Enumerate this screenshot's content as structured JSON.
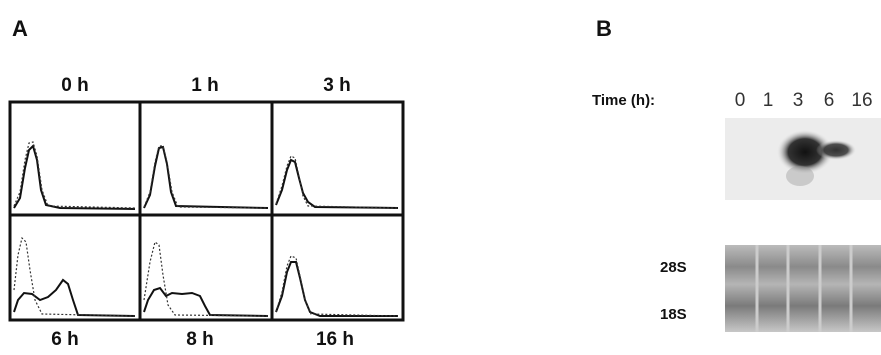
{
  "panel_a": {
    "label": "A",
    "top_labels": [
      "0 h",
      "1 h",
      "3 h"
    ],
    "bottom_labels": [
      "6 h",
      "8 h",
      "16 h"
    ]
  },
  "panel_b": {
    "label": "B",
    "time_label": "Time (h):",
    "lanes": [
      "0",
      "1",
      "3",
      "6",
      "16"
    ],
    "rrna_labels": [
      "28S",
      "18S"
    ]
  }
}
